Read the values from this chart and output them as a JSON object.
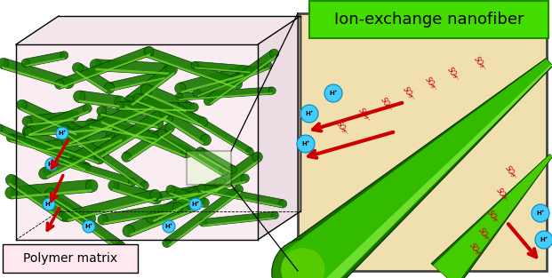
{
  "bg_color": "#ffffff",
  "box_left_color": "#f0d0d8",
  "nanofiber_green_dark": "#1a7a00",
  "nanofiber_green_mid": "#3aaa00",
  "nanofiber_green_light": "#77dd33",
  "arrow_red": "#cc0000",
  "sphere_blue": "#44ccff",
  "sphere_edge": "#0088bb",
  "zoom_box_bg": "#f0e0b0",
  "zoom_box_edge": "#444444",
  "label_green_bg": "#44dd00",
  "label_green_edge": "#228800",
  "label_polymer_bg": "#ffe8ee",
  "label_polymer_edge": "#000000",
  "so3_color": "#cc0000",
  "title_text": "Ion-exchange nanofiber",
  "polymer_text": "Polymer matrix",
  "so3_label": "SO₃⁻",
  "hplus_label": "H⁺",
  "fig_w": 6.21,
  "fig_h": 3.13,
  "dpi": 100
}
